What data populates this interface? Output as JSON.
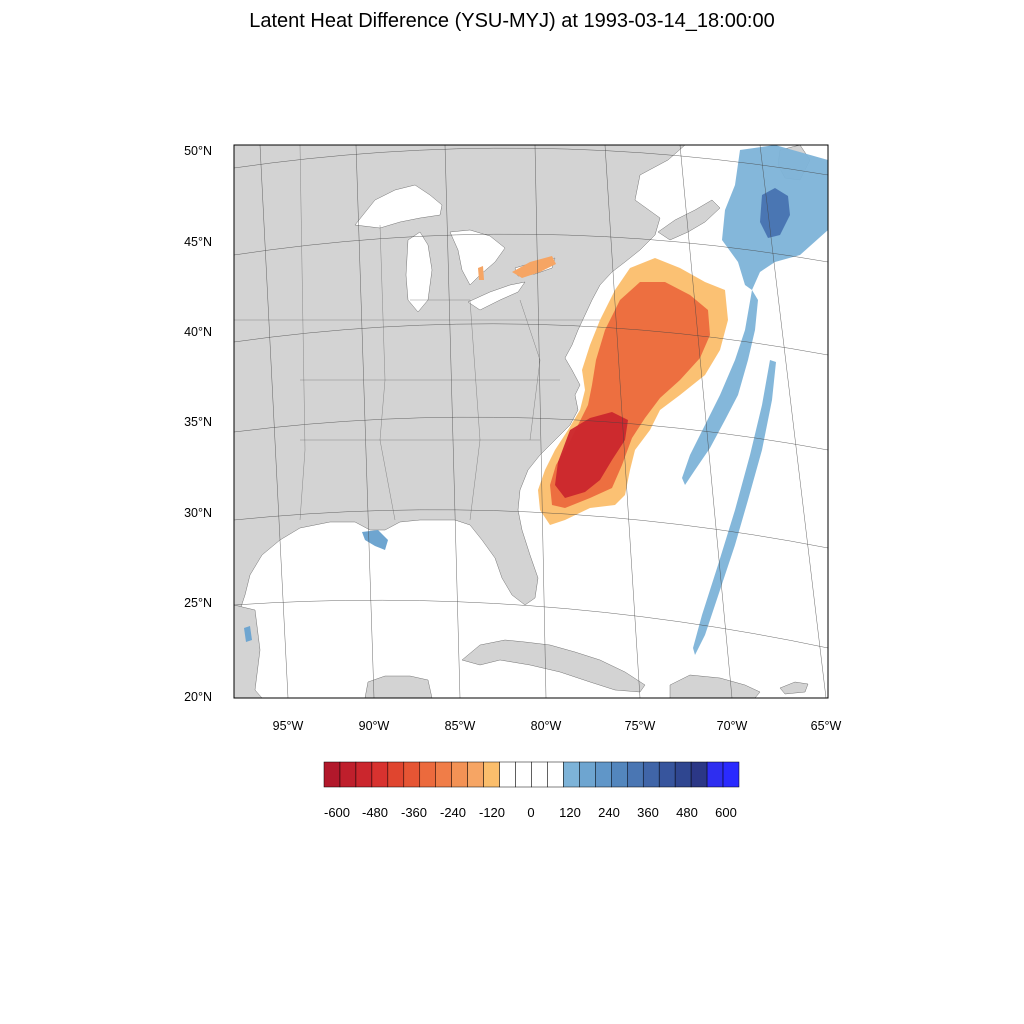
{
  "title": "Latent Heat Difference (YSU-MYJ) at 1993-03-14_18:00:00",
  "lat_labels": [
    "50°N",
    "45°N",
    "40°N",
    "35°N",
    "30°N",
    "25°N",
    "20°N"
  ],
  "lon_labels": [
    "95°W",
    "90°W",
    "85°W",
    "80°W",
    "75°W",
    "70°W",
    "65°W"
  ],
  "colorbar": {
    "tick_labels": [
      "-600",
      "-480",
      "-360",
      "-240",
      "-120",
      "0",
      "120",
      "240",
      "360",
      "480",
      "600"
    ],
    "colors": [
      "#b2182b",
      "#bf1f2c",
      "#cb262d",
      "#d8322f",
      "#e0452f",
      "#e65534",
      "#ec6a3d",
      "#f07d48",
      "#f39255",
      "#f6a564",
      "#fbbe6c",
      "#ffffff",
      "#ffffff",
      "#ffffff",
      "#ffffff",
      "#7db3d8",
      "#6ea5d0",
      "#6096c8",
      "#5386bd",
      "#4a76b3",
      "#4065a8",
      "#37559d",
      "#2f4690",
      "#2b3786",
      "#2e2ef0",
      "#2a2aff"
    ]
  },
  "colors": {
    "land": "#d3d3d3",
    "ocean": "#ffffff",
    "negative_anomaly": "#e0452f",
    "positive_anomaly": "#6ea5d0"
  }
}
